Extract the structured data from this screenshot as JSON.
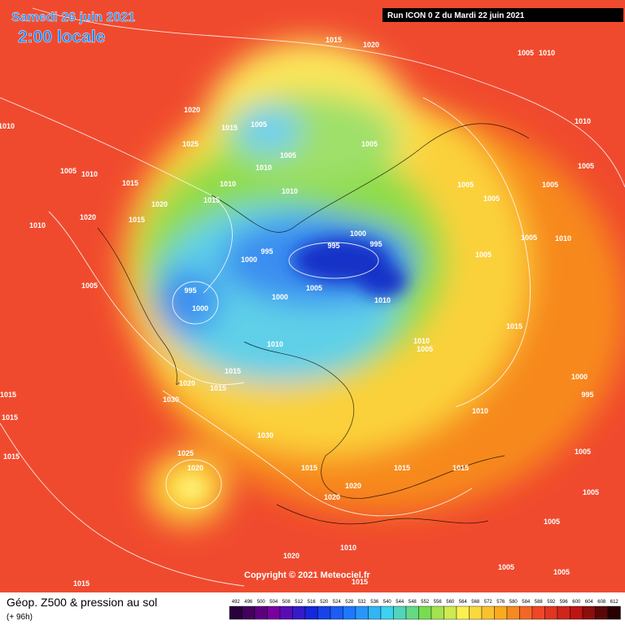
{
  "header": {
    "date": "Samedi 26 juin 2021",
    "time": "2:00 locale",
    "run": "Run ICON 0 Z du Mardi 22 juin 2021"
  },
  "map": {
    "pressure_labels": [
      1015,
      1020,
      1005,
      1010,
      1020,
      1015,
      1005,
      1005,
      1025,
      1010,
      1005,
      1010,
      1010,
      1005,
      1010,
      1015,
      1010,
      1015,
      1010,
      1005,
      1005,
      1005,
      1005,
      1020,
      1015,
      1010,
      1020,
      1000,
      995,
      995,
      1005,
      1010,
      995,
      1000,
      1005,
      1005,
      995,
      1000,
      1000,
      1005,
      1010,
      1015,
      1010,
      1005,
      1010,
      1015,
      1020,
      1030,
      1015,
      1015,
      1015,
      1000,
      995,
      1010,
      1030,
      1025,
      1020,
      1015,
      1015,
      1015,
      1015,
      1020,
      1020,
      1005,
      1005,
      1005,
      1010,
      1020,
      1005,
      1015,
      1015,
      1005
    ]
  },
  "footer": {
    "title": "Géop. Z500 & pression au sol",
    "lead": "(+ 96h)",
    "copyright": "Copyright © 2021 Meteociel.fr",
    "scale": [
      492,
      496,
      500,
      504,
      508,
      512,
      516,
      520,
      524,
      528,
      532,
      536,
      540,
      544,
      548,
      552,
      556,
      560,
      564,
      568,
      572,
      576,
      580,
      584,
      588,
      592,
      596,
      600,
      604,
      608,
      612
    ]
  }
}
